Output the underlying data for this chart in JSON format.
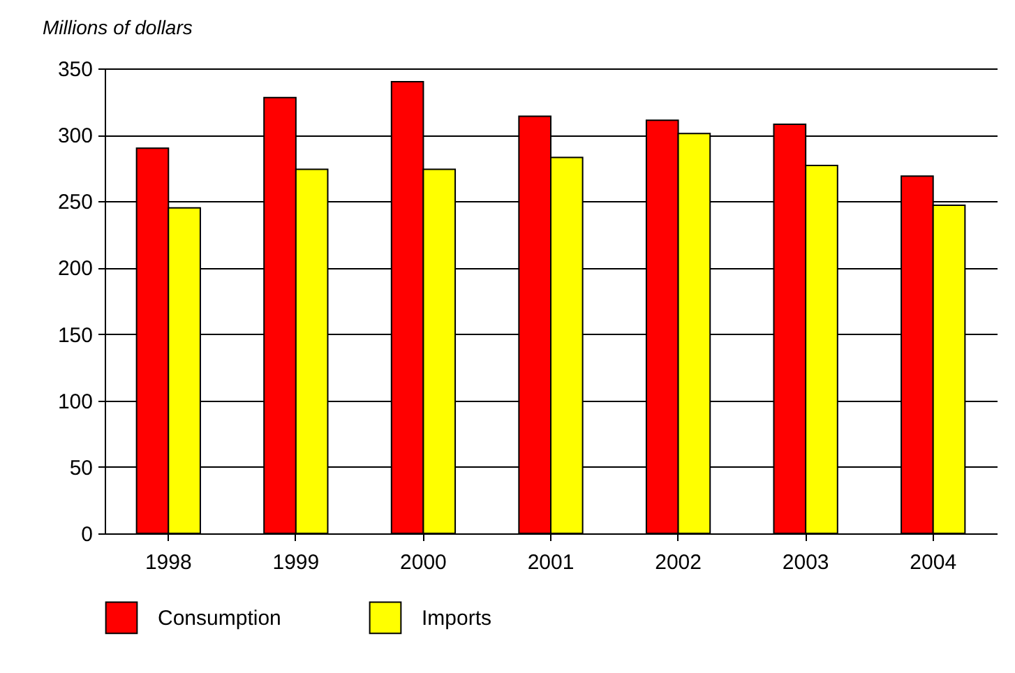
{
  "chart_data": {
    "type": "bar",
    "ylabel": "Millions of dollars",
    "categories": [
      "1998",
      "1999",
      "2000",
      "2001",
      "2002",
      "2003",
      "2004"
    ],
    "series": [
      {
        "name": "Consumption",
        "color": "#ff0000",
        "values": [
          290,
          328,
          340,
          314,
          311,
          308,
          269
        ]
      },
      {
        "name": "Imports",
        "color": "#ffff00",
        "values": [
          245,
          274,
          274,
          283,
          301,
          277,
          247
        ]
      }
    ],
    "ylim": [
      0,
      350
    ],
    "yticks": [
      0,
      50,
      100,
      150,
      200,
      250,
      300,
      350
    ],
    "grid": "y",
    "legend": "bottom"
  }
}
